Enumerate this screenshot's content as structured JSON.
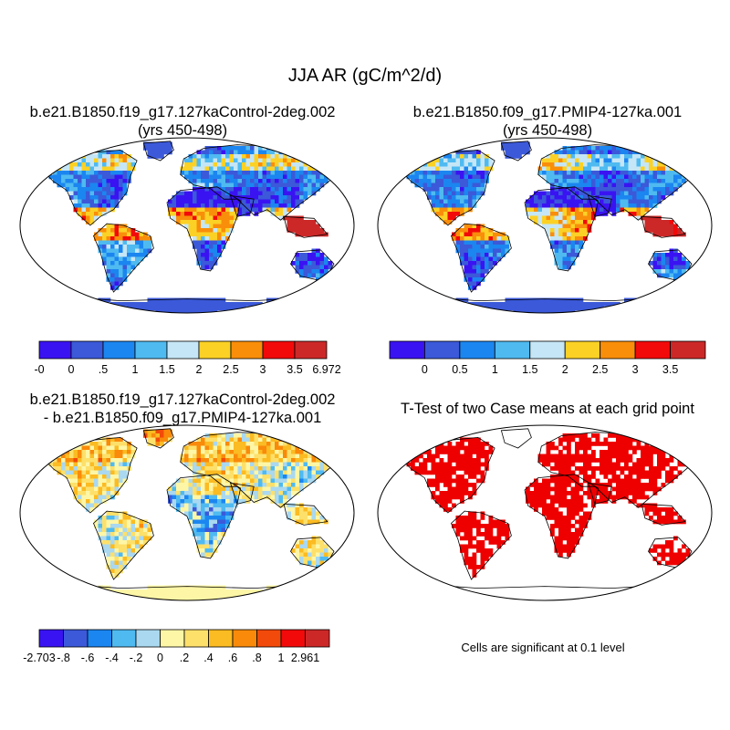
{
  "figure": {
    "title": "JJA AR (gC/m^2/d)",
    "note": "Cells are significant at 0.1 level"
  },
  "chart_data": [
    {
      "type": "heatmap",
      "title": "b.e21.B1850.f19_g17.127kaControl-2deg.002",
      "subtitle": "(yrs 450-498)",
      "colorbar": {
        "labels": [
          "-0",
          "0",
          ".5",
          "1",
          "1.5",
          "2",
          "2.5",
          "3",
          "3.5",
          "6.972"
        ],
        "colors": [
          "#3a13f2",
          "#3b59d9",
          "#1b86f0",
          "#4fbaf0",
          "#c5e6f6",
          "#fbd126",
          "#f98e0a",
          "#f20a0a",
          "#cc2828"
        ]
      }
    },
    {
      "type": "heatmap",
      "title": "b.e21.B1850.f09_g17.PMIP4-127ka.001",
      "subtitle": "(yrs 450-498)",
      "colorbar": {
        "labels": [
          "0",
          "0.5",
          "1",
          "1.5",
          "2",
          "2.5",
          "3",
          "3.5"
        ],
        "colors": [
          "#3a13f2",
          "#3b59d9",
          "#1b86f0",
          "#4fbaf0",
          "#c5e6f6",
          "#fbd126",
          "#f98e0a",
          "#f20a0a",
          "#cc2828"
        ]
      }
    },
    {
      "type": "heatmap",
      "title": "b.e21.B1850.f19_g17.127kaControl-2deg.002",
      "subtitle": "- b.e21.B1850.f09_g17.PMIP4-127ka.001",
      "colorbar": {
        "labels": [
          "-2.703",
          "-.8",
          "-.6",
          "-.4",
          "-.2",
          "0",
          ".2",
          ".4",
          ".6",
          ".8",
          "1",
          "2.961"
        ],
        "colors": [
          "#3a13f2",
          "#3b59d9",
          "#1b86f0",
          "#4fbaf0",
          "#a9d8f0",
          "#fdf6a6",
          "#fde06a",
          "#fbbb22",
          "#f98a0a",
          "#f24a0a",
          "#f20a0a",
          "#cc2828"
        ]
      }
    },
    {
      "type": "heatmap",
      "title": "T-Test of two Case means at each grid point",
      "subtitle": "",
      "colorbar": null,
      "significance_color": "#ee0000"
    }
  ]
}
